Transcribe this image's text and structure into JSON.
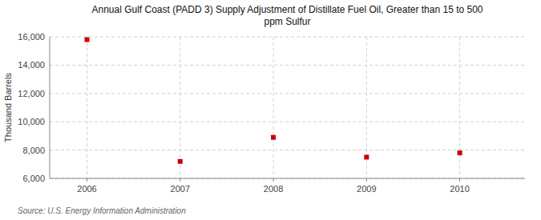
{
  "chart_data": {
    "type": "scatter",
    "title": "Annual Gulf Coast (PADD 3) Supply Adjustment of Distillate Fuel Oil, Greater than 15 to 500\nppm Sulfur",
    "y_label": "Thousand Barrels",
    "source": "Source: U.S. Energy Information Administration",
    "x": [
      2006,
      2007,
      2008,
      2009,
      2010
    ],
    "values": [
      15800,
      7200,
      8900,
      7500,
      7800
    ],
    "xlim": [
      2005.6,
      2010.7
    ],
    "ylim": [
      6000,
      16000
    ],
    "xticks": [
      2006,
      2007,
      2008,
      2009,
      2010
    ],
    "yticks": [
      {
        "value": 6000,
        "label": "6,000"
      },
      {
        "value": 8000,
        "label": "8,000"
      },
      {
        "value": 10000,
        "label": "10,000"
      },
      {
        "value": 12000,
        "label": "12,000"
      },
      {
        "value": 14000,
        "label": "14,000"
      },
      {
        "value": 16000,
        "label": "16,000"
      }
    ],
    "color": "#cc0000",
    "marker": "square",
    "grid": true
  }
}
